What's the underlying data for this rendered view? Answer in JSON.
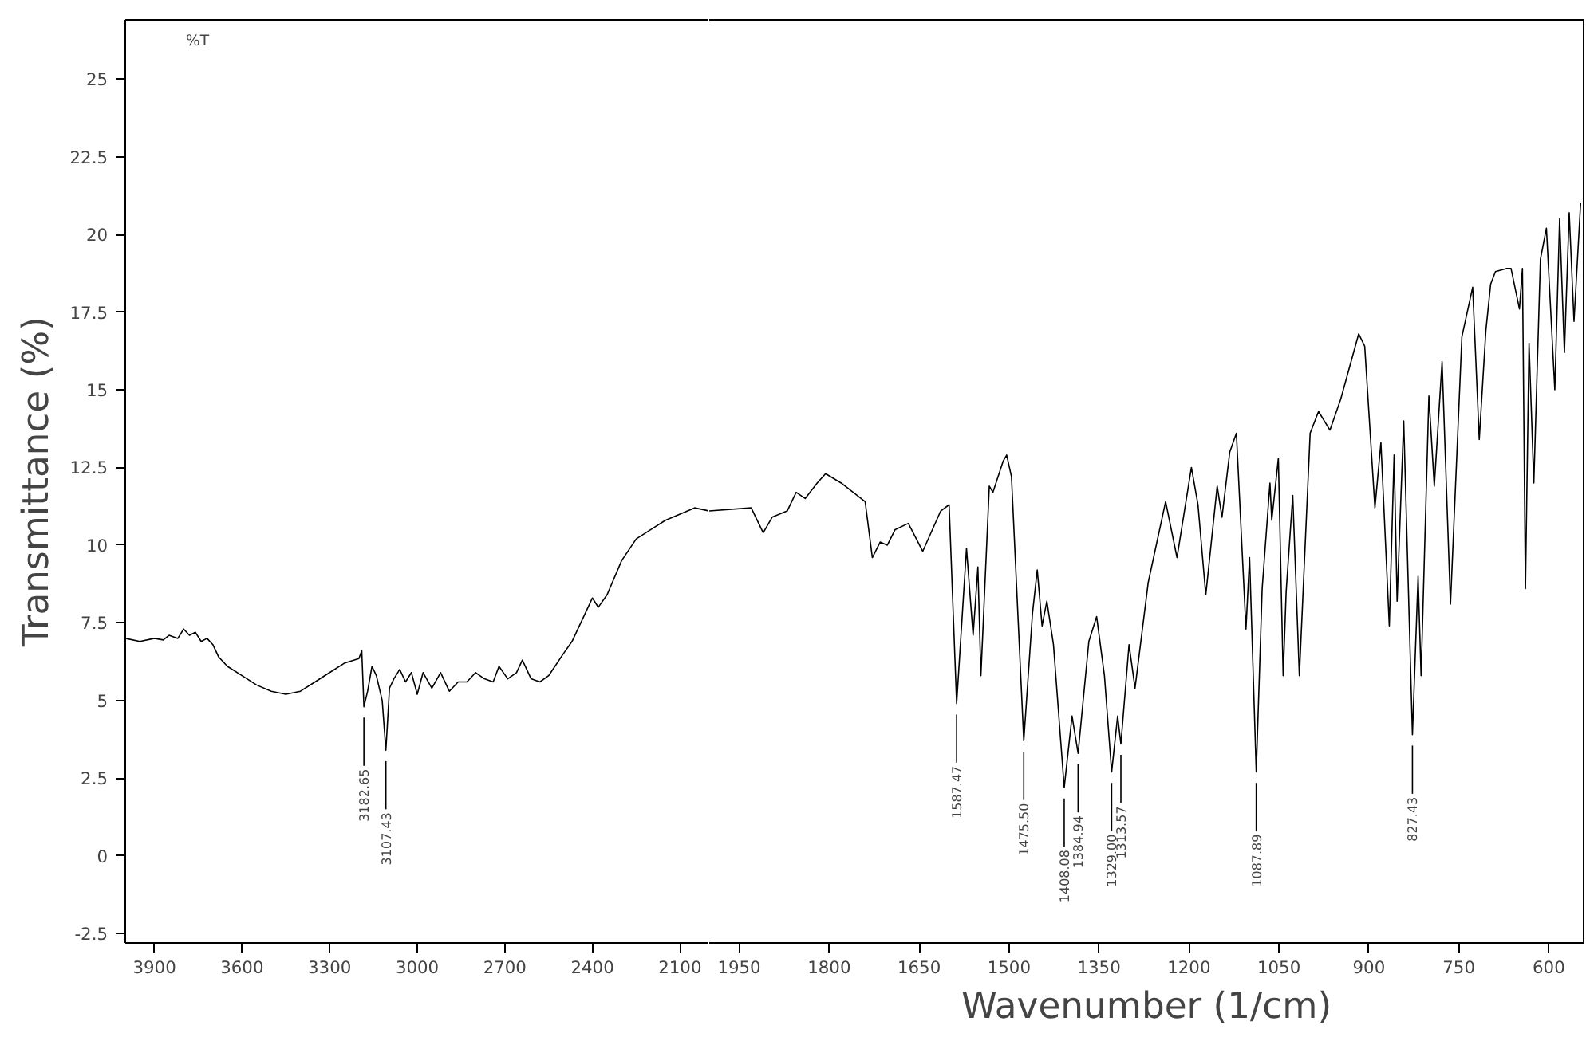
{
  "chart_data": [
    {
      "type": "line",
      "ylabel": "Transmittance (%)",
      "xlim": [
        4000,
        2000
      ],
      "ylim": [
        -2.8,
        26.9
      ],
      "xticks": [
        3900,
        3600,
        3300,
        3000,
        2700,
        2400,
        2100
      ],
      "yticks": [
        -2.5,
        0,
        2.5,
        5,
        7.5,
        10,
        12.5,
        15,
        17.5,
        20,
        22.5,
        25
      ],
      "grid": false,
      "marker": "none",
      "line_style": "solid",
      "series": [
        {
          "color": "#000000",
          "x": [
            4000,
            3950,
            3900,
            3870,
            3850,
            3820,
            3800,
            3780,
            3760,
            3740,
            3720,
            3700,
            3680,
            3650,
            3600,
            3550,
            3500,
            3450,
            3400,
            3350,
            3300,
            3250,
            3200,
            3190,
            3182.65,
            3170,
            3155,
            3140,
            3120,
            3107.43,
            3095,
            3080,
            3060,
            3040,
            3020,
            3000,
            2980,
            2950,
            2920,
            2890,
            2860,
            2830,
            2800,
            2770,
            2740,
            2720,
            2690,
            2660,
            2640,
            2610,
            2580,
            2550,
            2500,
            2470,
            2440,
            2400,
            2380,
            2350,
            2300,
            2250,
            2200,
            2150,
            2100,
            2050,
            2000
          ],
          "values": [
            7.0,
            6.9,
            7.0,
            6.95,
            7.1,
            7.0,
            7.3,
            7.1,
            7.2,
            6.9,
            7.0,
            6.8,
            6.4,
            6.1,
            5.8,
            5.5,
            5.3,
            5.2,
            5.3,
            5.6,
            5.9,
            6.2,
            6.35,
            6.6,
            4.8,
            5.3,
            6.1,
            5.8,
            5.0,
            3.4,
            5.4,
            5.7,
            6.0,
            5.6,
            5.9,
            5.2,
            5.9,
            5.4,
            5.9,
            5.3,
            5.6,
            5.6,
            5.9,
            5.7,
            5.6,
            6.1,
            5.7,
            5.9,
            6.3,
            5.7,
            5.6,
            5.8,
            6.5,
            6.9,
            7.5,
            8.3,
            8.0,
            8.4,
            9.5,
            10.2,
            10.5,
            10.8,
            11.0,
            11.2,
            11.1
          ]
        }
      ],
      "annotations": [
        "%T",
        {
          "text": "3182.65",
          "x": 3182.65,
          "y": 4.8
        },
        {
          "text": "3107.43",
          "x": 3107.43,
          "y": 3.4
        }
      ]
    },
    {
      "type": "line",
      "xlabel": "Wavenumber (1/cm)",
      "xlim": [
        2000,
        542
      ],
      "ylim": [
        -2.8,
        26.9
      ],
      "tick_labels": "x",
      "xticks": [
        1950,
        1800,
        1650,
        1500,
        1350,
        1200,
        1050,
        900,
        750,
        600
      ],
      "grid": false,
      "marker": "none",
      "line_style": "solid",
      "series": [
        {
          "color": "#000000",
          "x": [
            2000,
            1930,
            1910,
            1895,
            1870,
            1855,
            1840,
            1820,
            1806,
            1780,
            1760,
            1740,
            1728,
            1715,
            1703,
            1690,
            1668,
            1644,
            1614,
            1600,
            1587.47,
            1571,
            1560,
            1552,
            1547,
            1533,
            1527,
            1510,
            1504,
            1496,
            1475.5,
            1461,
            1453,
            1445,
            1437,
            1426,
            1408.08,
            1395,
            1384.94,
            1367,
            1354,
            1341,
            1329.0,
            1319,
            1313.57,
            1300,
            1290,
            1268,
            1239,
            1220,
            1196,
            1185,
            1172,
            1153,
            1145,
            1132,
            1121,
            1105,
            1099,
            1087.89,
            1078,
            1065,
            1062,
            1051,
            1043,
            1038,
            1027,
            1016,
            998,
            984,
            965,
            947,
            917,
            907,
            890,
            880,
            866,
            858,
            853,
            842,
            827.43,
            818,
            813,
            800,
            791,
            778,
            764,
            745,
            727,
            716,
            705,
            697,
            689,
            671,
            663,
            649,
            644,
            639,
            633,
            625,
            614,
            604,
            590,
            582,
            574,
            566,
            558,
            547
          ],
          "values": [
            11.1,
            11.2,
            10.4,
            10.9,
            11.1,
            11.7,
            11.5,
            12.0,
            12.3,
            12.0,
            11.7,
            11.4,
            9.6,
            10.1,
            10.0,
            10.5,
            10.7,
            9.8,
            11.1,
            11.3,
            4.9,
            9.9,
            7.1,
            9.3,
            5.8,
            11.9,
            11.7,
            12.7,
            12.9,
            12.2,
            3.7,
            7.8,
            9.2,
            7.4,
            8.2,
            6.8,
            2.2,
            4.5,
            3.3,
            6.9,
            7.7,
            5.8,
            2.7,
            4.5,
            3.6,
            6.8,
            5.4,
            8.8,
            11.4,
            9.6,
            12.5,
            11.3,
            8.4,
            11.9,
            10.9,
            13.0,
            13.6,
            7.3,
            9.6,
            2.7,
            8.6,
            12.0,
            10.8,
            12.8,
            5.8,
            8.5,
            11.6,
            5.8,
            13.6,
            14.3,
            13.7,
            14.7,
            16.8,
            16.4,
            11.2,
            13.3,
            7.4,
            12.9,
            8.2,
            14.0,
            3.9,
            9.0,
            5.8,
            14.8,
            11.9,
            15.9,
            8.1,
            16.7,
            18.3,
            13.4,
            16.9,
            18.4,
            18.8,
            18.9,
            18.9,
            17.6,
            18.9,
            8.6,
            16.5,
            12.0,
            19.2,
            20.2,
            15.0,
            20.5,
            16.2,
            20.7,
            17.2,
            21.0
          ]
        }
      ],
      "annotations": [
        {
          "text": "1587.47",
          "x": 1587.47,
          "y": 4.9
        },
        {
          "text": "1475.50",
          "x": 1475.5,
          "y": 3.7
        },
        {
          "text": "1408.08",
          "x": 1408.08,
          "y": 2.2
        },
        {
          "text": "1384.94",
          "x": 1384.94,
          "y": 3.3
        },
        {
          "text": "1329.00",
          "x": 1329.0,
          "y": 2.7
        },
        {
          "text": "1313.57",
          "x": 1313.57,
          "y": 3.6
        },
        {
          "text": "1087.89",
          "x": 1087.89,
          "y": 2.7
        },
        {
          "text": "827.43",
          "x": 827.43,
          "y": 3.9
        }
      ]
    }
  ]
}
